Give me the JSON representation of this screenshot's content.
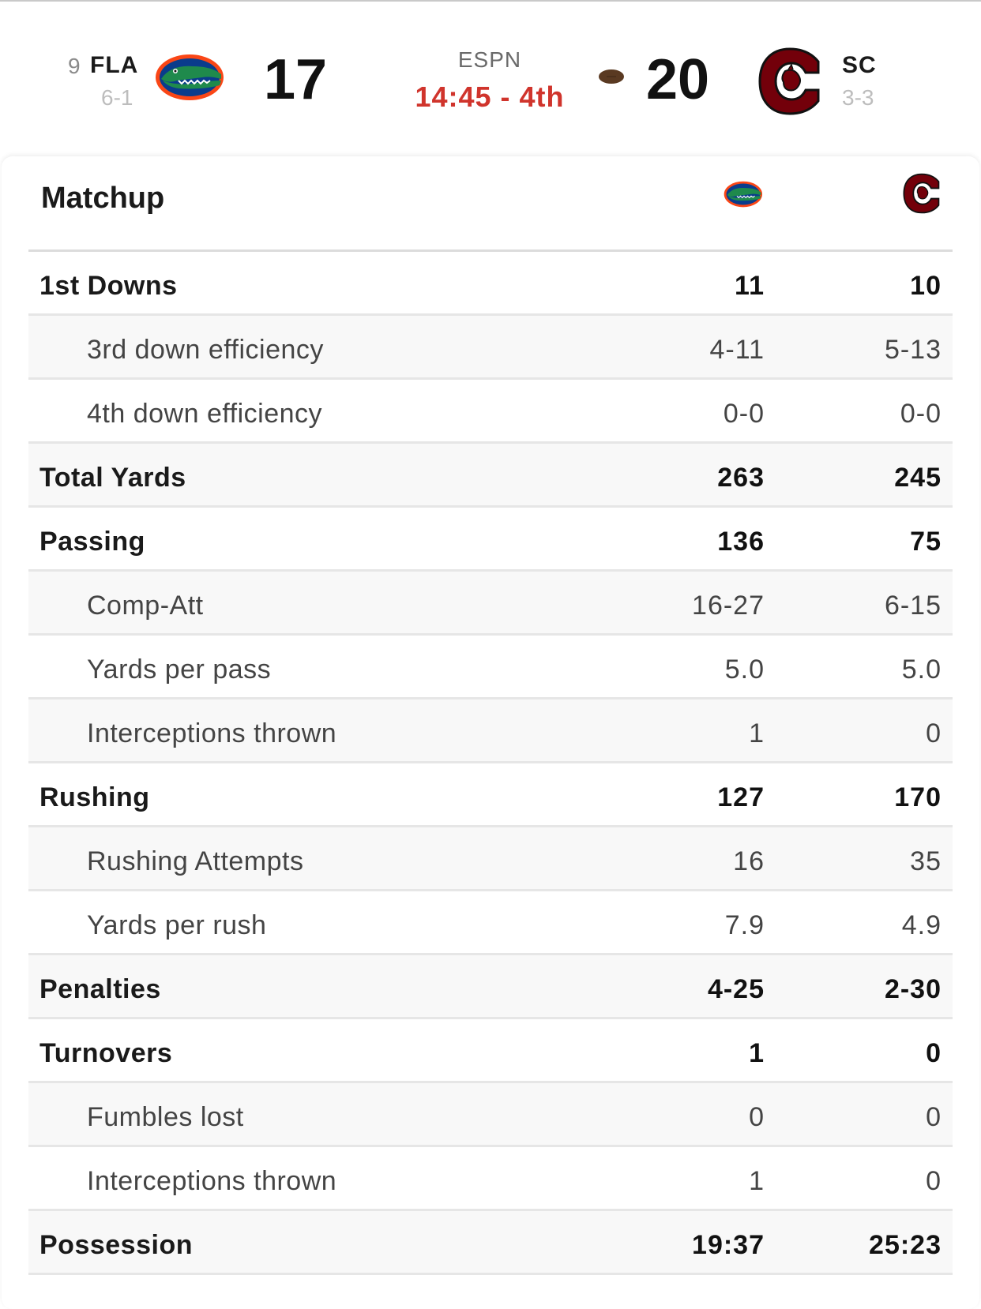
{
  "header": {
    "away": {
      "rank": "9",
      "abbr": "FLA",
      "record": "6-1",
      "score": "17"
    },
    "home": {
      "abbr": "SC",
      "record": "3-3",
      "score": "20"
    },
    "network": "ESPN",
    "clock": "14:45 - 4th",
    "possession_icon": "football-icon"
  },
  "matchup": {
    "title": "Matchup",
    "rows": [
      {
        "label": "1st Downs",
        "away": "11",
        "home": "10"
      },
      {
        "label": "3rd down efficiency",
        "away": "4-11",
        "home": "5-13"
      },
      {
        "label": "4th down efficiency",
        "away": "0-0",
        "home": "0-0"
      },
      {
        "label": "Total Yards",
        "away": "263",
        "home": "245"
      },
      {
        "label": "Passing",
        "away": "136",
        "home": "75"
      },
      {
        "label": "Comp-Att",
        "away": "16-27",
        "home": "6-15"
      },
      {
        "label": "Yards per pass",
        "away": "5.0",
        "home": "5.0"
      },
      {
        "label": "Interceptions thrown",
        "away": "1",
        "home": "0"
      },
      {
        "label": "Rushing",
        "away": "127",
        "home": "170"
      },
      {
        "label": "Rushing Attempts",
        "away": "16",
        "home": "35"
      },
      {
        "label": "Yards per rush",
        "away": "7.9",
        "home": "4.9"
      },
      {
        "label": "Penalties",
        "away": "4-25",
        "home": "2-30"
      },
      {
        "label": "Turnovers",
        "away": "1",
        "home": "0"
      },
      {
        "label": "Fumbles lost",
        "away": "0",
        "home": "0"
      },
      {
        "label": "Interceptions thrown",
        "away": "1",
        "home": "0"
      },
      {
        "label": "Possession",
        "away": "19:37",
        "home": "25:23"
      }
    ]
  },
  "colors": {
    "clock_red": "#d0342c",
    "gator_green": "#1f6f4a",
    "gator_orange": "#fa4616",
    "gator_blue": "#0a3c8c",
    "gamecock_garnet": "#73000a"
  }
}
